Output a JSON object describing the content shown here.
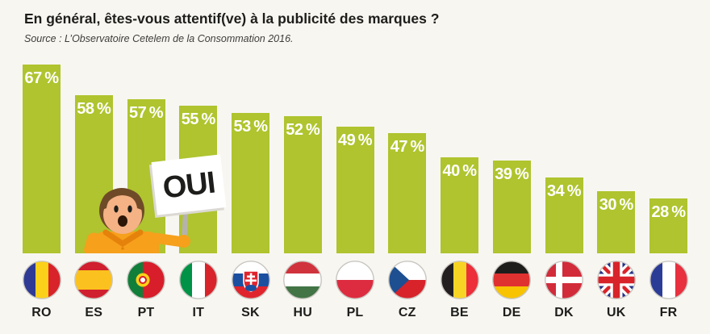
{
  "page": {
    "background": "#f8f6f1"
  },
  "header": {
    "title": "En général, êtes-vous attentif(ve) à la publicité des marques ?",
    "source": "Source : L’Observatoire Cetelem de la Consommation 2016."
  },
  "mascot": {
    "sign_label": "OUI"
  },
  "flag_names": {
    "RO": "romania",
    "ES": "spain",
    "PT": "portugal",
    "IT": "italy",
    "SK": "slovakia",
    "HU": "hungary",
    "PL": "poland",
    "CZ": "czech-republic",
    "BE": "belgium",
    "DE": "germany",
    "DK": "denmark",
    "UK": "united-kingdom",
    "FR": "france"
  },
  "chart_data": {
    "type": "bar",
    "title": "En général, êtes-vous attentif(ve) à la publicité des marques ?",
    "source": "Source : L’Observatoire Cetelem de la Consommation 2016.",
    "unit": "%",
    "categories": [
      "RO",
      "ES",
      "PT",
      "IT",
      "SK",
      "HU",
      "PL",
      "CZ",
      "BE",
      "DE",
      "DK",
      "UK",
      "FR"
    ],
    "values": [
      67,
      58,
      57,
      55,
      53,
      52,
      49,
      47,
      40,
      39,
      34,
      30,
      28
    ],
    "value_labels": [
      "67 %",
      "58 %",
      "57 %",
      "55 %",
      "53 %",
      "52 %",
      "49 %",
      "47 %",
      "40 %",
      "39 %",
      "34 %",
      "30 %",
      "28 %"
    ],
    "annotation": "OUI",
    "bar_color": "#afc42e",
    "value_label_color": "#ffffff",
    "xlabel": "",
    "ylabel": "",
    "ylim": [
      0,
      100
    ],
    "grid": false,
    "legend": false
  }
}
